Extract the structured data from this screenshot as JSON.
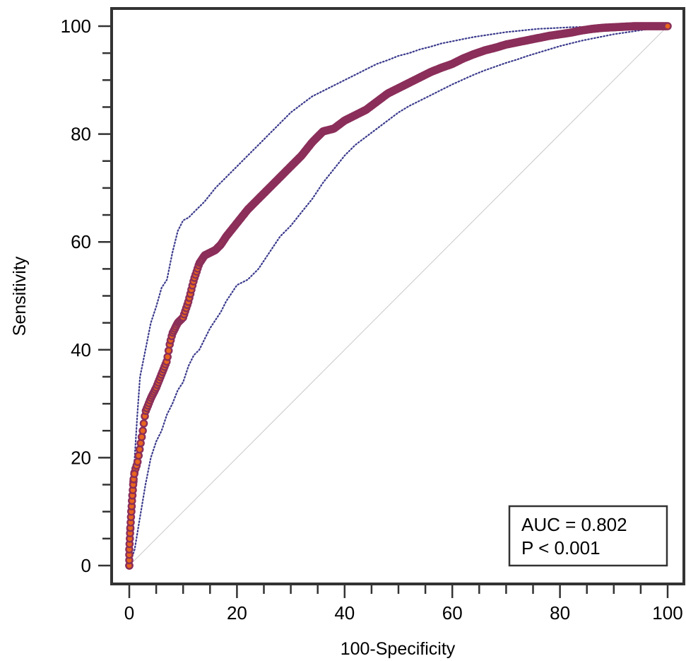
{
  "chart_data": {
    "type": "line",
    "title": "",
    "xlabel": "100-Specificity",
    "ylabel": "Sensitivity",
    "xlim": [
      0,
      100
    ],
    "ylim": [
      0,
      100
    ],
    "x_ticks": [
      "0",
      "20",
      "40",
      "60",
      "80",
      "100"
    ],
    "y_ticks": [
      "0",
      "20",
      "40",
      "60",
      "80",
      "100"
    ],
    "grid": false,
    "annotation": {
      "placement": "bottom-right",
      "lines": [
        "AUC = 0.802",
        "P < 0.001"
      ]
    },
    "reference_line": {
      "style": "diagonal",
      "from": [
        0,
        0
      ],
      "to": [
        100,
        100
      ],
      "color": "#c8c8c8"
    },
    "series": [
      {
        "role": "roc-curve",
        "style": "markers",
        "color": "#8b2e5a",
        "marker_edge": "#8b2e5a",
        "marker_fill": "#e8651e",
        "x": [
          0,
          0,
          0.2,
          0.5,
          0.8,
          1,
          1.5,
          2,
          2.5,
          3,
          4,
          5,
          6,
          7,
          7.5,
          8,
          9,
          10,
          11,
          12,
          13,
          14,
          15,
          16,
          17,
          18,
          20,
          22,
          24,
          26,
          28,
          30,
          32,
          34,
          36,
          38,
          40,
          42,
          44,
          46,
          48,
          50,
          52,
          54,
          56,
          58,
          60,
          62,
          64,
          66,
          68,
          70,
          72,
          74,
          76,
          78,
          80,
          82,
          84,
          86,
          88,
          90,
          92,
          94,
          96,
          98,
          100
        ],
        "y": [
          0,
          3,
          7,
          12,
          16,
          17.5,
          19,
          22,
          25,
          28.5,
          31,
          33,
          35.5,
          38,
          41,
          43,
          45,
          46,
          49,
          53,
          56,
          57.5,
          58,
          58.5,
          59.5,
          61,
          63.5,
          66,
          68,
          70,
          72,
          74,
          76,
          78.5,
          80.5,
          81,
          82.5,
          83.5,
          84.5,
          86,
          87.5,
          88.5,
          89.5,
          90.5,
          91.5,
          92.3,
          93,
          94,
          94.8,
          95.5,
          96,
          96.6,
          97,
          97.4,
          97.8,
          98.2,
          98.5,
          98.8,
          99.2,
          99.5,
          99.7,
          99.8,
          99.9,
          100,
          100,
          100,
          100
        ]
      },
      {
        "role": "upper-confidence-bound",
        "style": "dotted",
        "color": "#3a3a8c",
        "x": [
          0,
          0.3,
          0.6,
          1,
          1.5,
          2,
          3,
          4,
          5,
          6,
          7,
          8,
          9,
          10,
          11,
          12,
          14,
          16,
          18,
          20,
          22,
          24,
          26,
          28,
          30,
          32,
          34,
          36,
          38,
          40,
          42,
          44,
          46,
          48,
          50,
          52,
          54,
          56,
          58,
          60,
          62,
          64,
          66,
          68,
          70,
          72,
          74,
          76,
          78,
          80,
          82,
          84,
          86,
          88,
          90,
          92,
          94,
          96,
          98,
          100
        ],
        "y": [
          0,
          5,
          12,
          20,
          28,
          35,
          40,
          45,
          48,
          51.5,
          53,
          58,
          62,
          64,
          64.5,
          65.5,
          67.5,
          70,
          72,
          74,
          76,
          78,
          80,
          82,
          84,
          85.5,
          87,
          88,
          89,
          90,
          91,
          92,
          93,
          93.7,
          94.5,
          95,
          95.7,
          96.2,
          96.8,
          97.2,
          97.6,
          98,
          98.3,
          98.6,
          98.9,
          99.1,
          99.3,
          99.5,
          99.6,
          99.7,
          99.8,
          99.85,
          99.9,
          99.95,
          100,
          100,
          100,
          100,
          100,
          100
        ]
      },
      {
        "role": "lower-confidence-bound",
        "style": "dotted",
        "color": "#3a3a8c",
        "x": [
          0,
          1,
          2,
          3,
          4,
          5,
          6,
          7,
          8,
          9,
          10,
          11,
          12,
          13,
          14,
          15,
          16,
          17,
          18,
          19,
          20,
          22,
          24,
          26,
          28,
          30,
          32,
          34,
          36,
          38,
          40,
          42,
          44,
          46,
          48,
          50,
          52,
          54,
          56,
          58,
          60,
          62,
          64,
          66,
          68,
          70,
          72,
          74,
          76,
          78,
          80,
          82,
          84,
          86,
          88,
          90,
          92,
          94,
          96,
          98,
          100
        ],
        "y": [
          0,
          3,
          9,
          15,
          20,
          23,
          25,
          28,
          30,
          32.5,
          34,
          37,
          39,
          40,
          42,
          44,
          45.5,
          47,
          49,
          50.5,
          52,
          53,
          55,
          58,
          61,
          63,
          65.5,
          68,
          71,
          73.5,
          76,
          78,
          79.5,
          81,
          82.5,
          84,
          85.2,
          86.2,
          87.2,
          88.2,
          89.2,
          90.1,
          91,
          91.8,
          92.5,
          93.2,
          93.8,
          94.5,
          95.1,
          95.7,
          96.3,
          96.8,
          97.3,
          97.7,
          98.1,
          98.5,
          98.8,
          99.1,
          99.4,
          99.6,
          100
        ]
      }
    ]
  }
}
